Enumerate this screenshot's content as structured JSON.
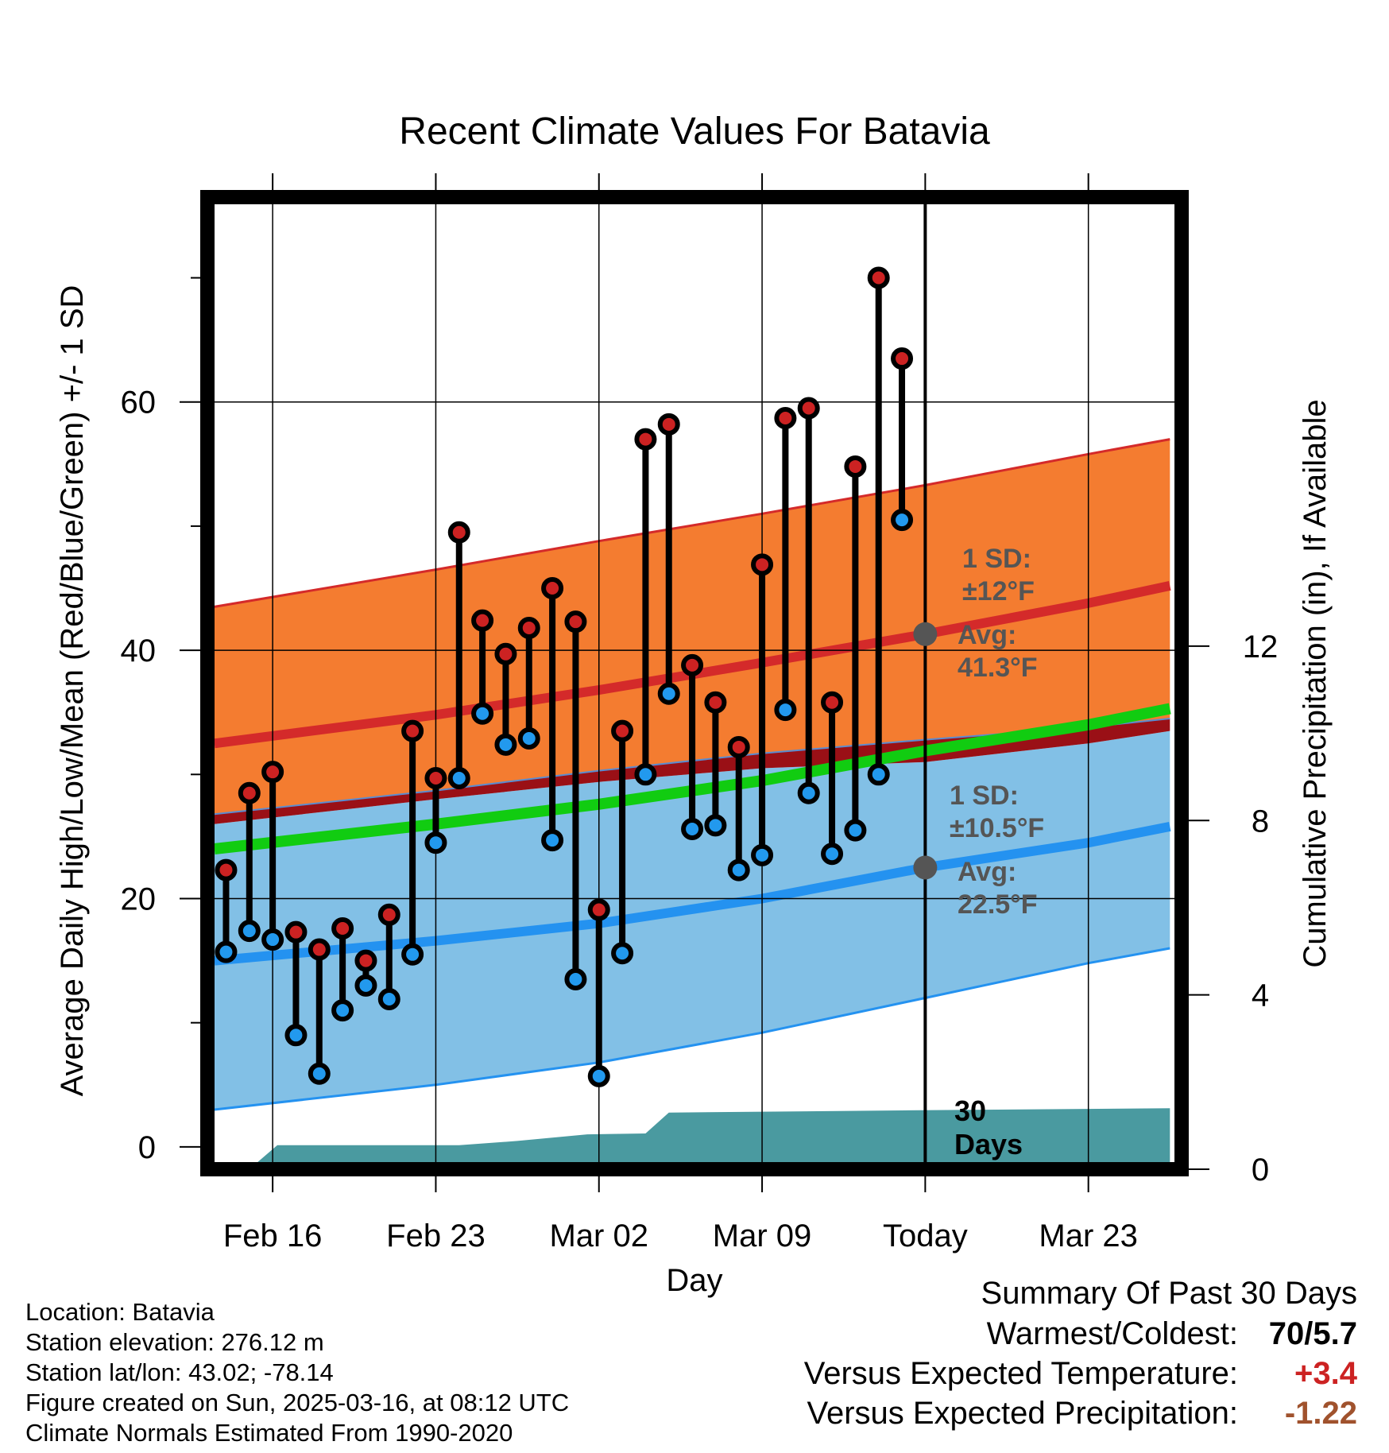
{
  "chart_data": {
    "type": "line",
    "title": "Recent Climate Values For Batavia",
    "xlabel": "Day",
    "ylabel": "Average Daily High/Low/Mean (Red/Blue/Green) +/- 1 SD",
    "y2label": "Cumulative Precipitation (in), If Available",
    "xlim": [
      -2.8,
      39
    ],
    "ylim": [
      -1.8,
      76.5
    ],
    "y2lim": [
      0,
      22.3
    ],
    "x_ticks": [
      {
        "x": 0,
        "label": "Feb 16"
      },
      {
        "x": 7,
        "label": "Feb 23"
      },
      {
        "x": 14,
        "label": "Mar 02"
      },
      {
        "x": 21,
        "label": "Mar 09"
      },
      {
        "x": 28,
        "label": "Today"
      },
      {
        "x": 35,
        "label": "Mar 23"
      }
    ],
    "y_ticks": [
      {
        "y": 0,
        "label": "0"
      },
      {
        "y": 20,
        "label": "20"
      },
      {
        "y": 40,
        "label": "40"
      },
      {
        "y": 60,
        "label": "60"
      }
    ],
    "y_minor_ticks": [
      10,
      30,
      50,
      70
    ],
    "y_grid": [
      20,
      40,
      60
    ],
    "y2_ticks": [
      {
        "y": 0,
        "label": "0"
      },
      {
        "y": 4,
        "label": "4"
      },
      {
        "y": 8,
        "label": "8"
      },
      {
        "y": 12,
        "label": "12"
      }
    ],
    "today_x": 28,
    "normals": {
      "x": [
        -2.5,
        7,
        14,
        21,
        28,
        35,
        38.5
      ],
      "high_avg": [
        32.5,
        34.8,
        36.8,
        39.0,
        41.3,
        43.8,
        45.2
      ],
      "high_upper": [
        43.5,
        46.5,
        48.8,
        51.0,
        53.3,
        55.8,
        57.0
      ],
      "high_lower": [
        26.8,
        28.7,
        30.3,
        31.7,
        32.8,
        33.8,
        34.5
      ],
      "low_avg": [
        15.0,
        16.6,
        18.0,
        20.0,
        22.5,
        24.5,
        25.8
      ],
      "low_upper": [
        26.0,
        28.0,
        29.4,
        30.5,
        31.0,
        32.5,
        33.5
      ],
      "low_lower": [
        3.0,
        5.0,
        6.8,
        9.2,
        12.0,
        14.8,
        16.0
      ],
      "mean_avg": [
        24.0,
        26.0,
        27.6,
        29.5,
        31.9,
        34.0,
        35.3
      ]
    },
    "series": [
      {
        "name": "Daily High",
        "color": "#cc2222",
        "x": [
          -2,
          -1,
          0,
          1,
          2,
          3,
          4,
          5,
          6,
          7,
          8,
          9,
          10,
          11,
          12,
          13,
          14,
          15,
          16,
          17,
          18,
          19,
          20,
          21,
          22,
          23,
          24,
          25,
          26,
          27
        ],
        "values": [
          22.3,
          28.5,
          30.2,
          17.3,
          15.9,
          17.6,
          15.0,
          18.7,
          33.5,
          29.7,
          49.5,
          42.4,
          39.7,
          41.8,
          45.0,
          42.3,
          19.1,
          33.5,
          57.0,
          58.2,
          38.8,
          35.8,
          32.2,
          46.9,
          58.7,
          59.5,
          35.8,
          54.8,
          70.0,
          63.5
        ]
      },
      {
        "name": "Daily Low",
        "color": "#2299ee",
        "x": [
          -2,
          -1,
          0,
          1,
          2,
          3,
          4,
          5,
          6,
          7,
          8,
          9,
          10,
          11,
          12,
          13,
          14,
          15,
          16,
          17,
          18,
          19,
          20,
          21,
          22,
          23,
          24,
          25,
          26,
          27
        ],
        "values": [
          15.7,
          17.4,
          16.7,
          9.0,
          5.9,
          11.0,
          13.0,
          11.9,
          15.5,
          24.5,
          29.7,
          34.9,
          32.4,
          32.9,
          24.7,
          13.5,
          5.7,
          15.6,
          30.0,
          36.5,
          25.6,
          25.9,
          22.3,
          23.5,
          35.2,
          28.5,
          23.6,
          25.5,
          30.0,
          50.5
        ]
      },
      {
        "name": "Cumulative Precipitation",
        "color": "#4a9aa0",
        "x": [
          -2.5,
          -1,
          0.2,
          8,
          10.5,
          13.5,
          16,
          17,
          27,
          38.5
        ],
        "values": [
          0.0,
          0.0,
          0.55,
          0.55,
          0.65,
          0.8,
          0.82,
          1.3,
          1.35,
          1.4
        ]
      }
    ],
    "annotations": {
      "high_sd_line1": "1 SD:",
      "high_sd_line2": "±12°F",
      "high_avg_line1": "Avg:",
      "high_avg_line2": "41.3°F",
      "low_sd_line1": "1 SD:",
      "low_sd_line2": "±10.5°F",
      "low_avg_line1": "Avg:",
      "low_avg_line2": "22.5°F",
      "days_line1": "30",
      "days_line2": "Days"
    },
    "colors": {
      "high_band": "#f47c30",
      "high_line": "#d42a2a",
      "low_band": "#82c0e6",
      "low_line": "#2492f0",
      "overlap_band": "#9a1016",
      "mean_line": "#11cc11",
      "precip": "#4a9aa0",
      "marker_gray": "#555555"
    }
  },
  "metadata": {
    "location": "Location: Batavia",
    "elevation": "Station elevation: 276.12 m",
    "latlon": "Station lat/lon: 43.02; -78.14",
    "created": "Figure created on Sun, 2025-03-16, at 08:12 UTC",
    "normals": "Climate Normals Estimated From 1990-2020"
  },
  "summary": {
    "title": "Summary Of Past 30 Days",
    "warmest_label": "Warmest/Coldest:",
    "warmest_value": "70/5.7",
    "temp_label": "Versus Expected Temperature:",
    "temp_value": "+3.4",
    "temp_color": "#cc2222",
    "precip_label": "Versus Expected Precipitation:",
    "precip_value": "-1.22",
    "precip_color": "#a0522d"
  }
}
